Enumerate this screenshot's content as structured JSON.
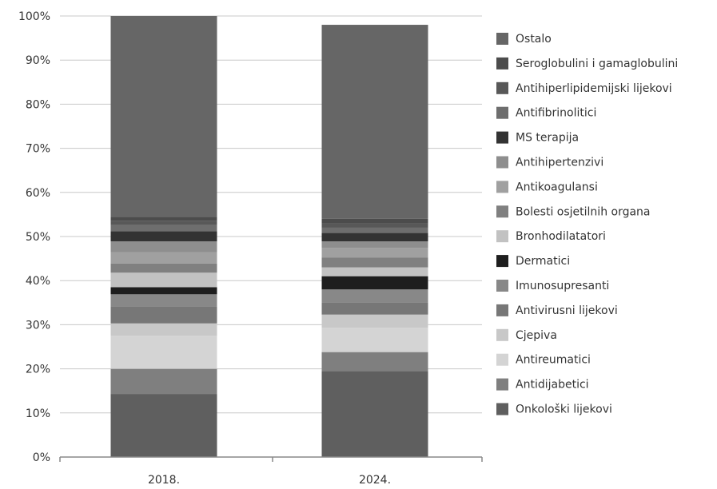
{
  "chart_data": {
    "type": "bar",
    "stacked": true,
    "categories": [
      "2018.",
      "2024."
    ],
    "yticks": [
      "0%",
      "10%",
      "20%",
      "30%",
      "40%",
      "50%",
      "60%",
      "70%",
      "80%",
      "90%",
      "100%"
    ],
    "ylim": [
      0,
      100
    ],
    "grid": true,
    "legend_position": "right",
    "series": [
      {
        "name": "Onkološki lijekovi",
        "color": "#5f5f5f",
        "values": [
          14.3,
          19.5
        ]
      },
      {
        "name": "Antidijabetici",
        "color": "#7f7f7f",
        "values": [
          5.7,
          4.3
        ]
      },
      {
        "name": "Antireumatici",
        "color": "#d4d4d4",
        "values": [
          7.5,
          5.5
        ]
      },
      {
        "name": "Cjepiva",
        "color": "#c8c8c8",
        "values": [
          2.8,
          3.0
        ]
      },
      {
        "name": "Antivirusni lijekovi",
        "color": "#777777",
        "values": [
          3.9,
          2.8
        ]
      },
      {
        "name": "Imunosupresanti",
        "color": "#888888",
        "values": [
          2.7,
          2.9
        ]
      },
      {
        "name": "Dermatici",
        "color": "#1e1e1e",
        "values": [
          1.6,
          3.0
        ]
      },
      {
        "name": "Bronhodilatatori",
        "color": "#c2c2c2",
        "values": [
          3.3,
          2.0
        ]
      },
      {
        "name": "Bolesti osjetilnih organa",
        "color": "#808080",
        "values": [
          2.1,
          2.2
        ]
      },
      {
        "name": "Antikoagulansi",
        "color": "#a0a0a0",
        "values": [
          2.5,
          2.2
        ]
      },
      {
        "name": "Antihipertenzivi",
        "color": "#8e8e8e",
        "values": [
          2.5,
          1.5
        ]
      },
      {
        "name": "MS terapija",
        "color": "#333333",
        "values": [
          2.3,
          1.9
        ]
      },
      {
        "name": "Antifibrinolitici",
        "color": "#6e6e6e",
        "values": [
          1.4,
          1.2
        ]
      },
      {
        "name": "Antihiperlipidemijski lijekovi",
        "color": "#585858",
        "values": [
          1.0,
          1.0
        ]
      },
      {
        "name": "Seroglobulini i gamaglobulini",
        "color": "#4c4c4c",
        "values": [
          0.9,
          1.0
        ]
      },
      {
        "name": "Ostalo",
        "color": "#666666",
        "values": [
          45.5,
          44.0
        ]
      }
    ],
    "legend_order": [
      "Ostalo",
      "Seroglobulini i gamaglobulini",
      "Antihiperlipidemijski lijekovi",
      "Antifibrinolitici",
      "MS terapija",
      "Antihipertenzivi",
      "Antikoagulansi",
      "Bolesti osjetilnih organa",
      "Bronhodilatatori",
      "Dermatici",
      "Imunosupresanti",
      "Antivirusni lijekovi",
      "Cjepiva",
      "Antireumatici",
      "Antidijabetici",
      "Onkološki lijekovi"
    ],
    "colors": {
      "grid": "#c8c8c8",
      "axis": "#888888",
      "text": "#333333"
    }
  }
}
